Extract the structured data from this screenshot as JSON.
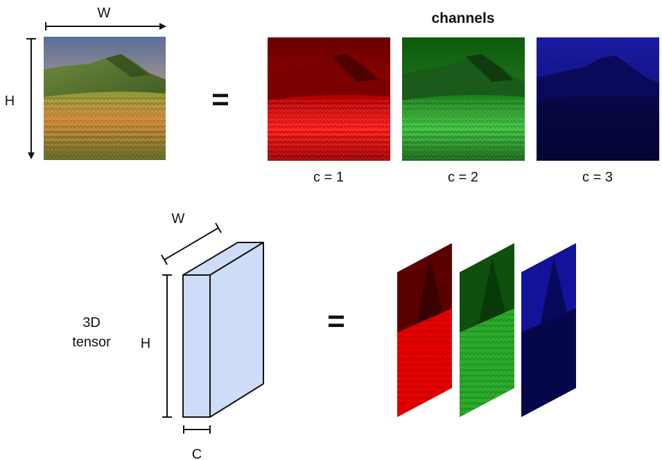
{
  "top": {
    "width_label": "W",
    "height_label": "H",
    "equals": "=",
    "channels_title": "channels",
    "channel_captions": [
      "c = 1",
      "c = 2",
      "c = 3"
    ]
  },
  "bottom": {
    "width_label": "W",
    "height_label": "H",
    "depth_label": "C",
    "tensor_label_line1": "3D",
    "tensor_label_line2": "tensor",
    "equals": "="
  },
  "colors": {
    "red_channel": "#e00000",
    "green_channel": "#1fa51f",
    "blue_channel": "#0a0aa8",
    "tensor_fill": "#cfdcf7",
    "stroke": "#111111"
  },
  "icons": {
    "photo": "mountain-landscape-photo",
    "channel_images": [
      "red-channel-image",
      "green-channel-image",
      "blue-channel-image"
    ]
  }
}
